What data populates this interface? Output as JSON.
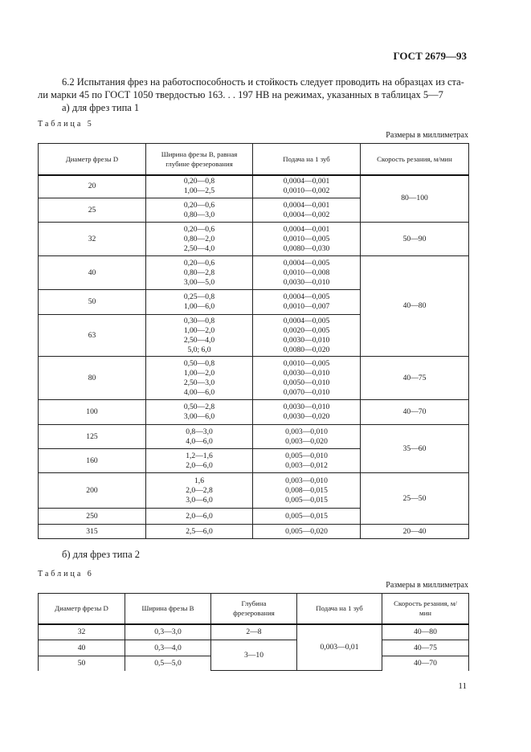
{
  "header": {
    "doc_code": "ГОСТ 2679—93"
  },
  "intro": {
    "line1": "6.2  Испытания фрез на работоспособность и стойкость следует проводить на образцах из ста-",
    "line2": "ли марки 45 по ГОСТ 1050 твердостью 163. . . 197 НВ на режимах, указанных в таблицах 5—7",
    "item_a": "а)  для фрез типа 1"
  },
  "table5": {
    "caption": "Таблица 5",
    "units": "Размеры в миллиметрах",
    "headers": [
      "Диаметр фрезы D",
      "Ширина фрезы B, равная глубине фрезерования",
      "Подача на 1 зуб",
      "Скорость резания, м/мин"
    ],
    "rows": [
      {
        "d": "20",
        "b": [
          "0,20—0,8",
          "1,00—2,5"
        ],
        "feed": [
          "0,0004—0,001",
          "0,0010—0,002"
        ],
        "speed": "80—100",
        "span": 2
      },
      {
        "d": "25",
        "b": [
          "0,20—0,6",
          "0,80—3,0"
        ],
        "feed": [
          "0,0004—0,001",
          "0,0004—0,002"
        ]
      },
      {
        "d": "32",
        "b": [
          "0,20—0,6",
          "0,80—2,0",
          "2,50—4,0"
        ],
        "feed": [
          "0,0004—0,001",
          "0,0010—0,005",
          "0,0080—0,030"
        ],
        "speed": "50—90",
        "span": 1
      },
      {
        "d": "40",
        "b": [
          "0,20—0,6",
          "0,80—2,8",
          "3,00—5,0"
        ],
        "feed": [
          "0,0004—0,005",
          "0,0010—0,008",
          "0,0030—0,010"
        ],
        "speed": "40—80",
        "span": 3
      },
      {
        "d": "50",
        "b": [
          "0,25—0,8",
          "1,00—6,0"
        ],
        "feed": [
          "0,0004—0,005",
          "0,0010—0,007"
        ]
      },
      {
        "d": "63",
        "b": [
          "0,30—0,8",
          "1,00—2,0",
          "2,50—4,0",
          "5,0; 6,0"
        ],
        "feed": [
          "0,0004—0,005",
          "0,0020—0,005",
          "0,0030—0,010",
          "0,0080—0,020"
        ]
      },
      {
        "d": "80",
        "b": [
          "0,50—0,8",
          "1,00—2,0",
          "2,50—3,0",
          "4,00—6,0"
        ],
        "feed": [
          "0,0010—0,005",
          "0,0030—0,010",
          "0,0050—0,010",
          "0,0070—0,010"
        ],
        "speed": "40—75",
        "span": 1
      },
      {
        "d": "100",
        "b": [
          "0,50—2,8",
          "3,00—6,0"
        ],
        "feed": [
          "0,0030—0,010",
          "0,0030—0,020"
        ],
        "speed": "40—70",
        "span": 1
      },
      {
        "d": "125",
        "b": [
          "0,8—3,0",
          "4,0—6,0"
        ],
        "feed": [
          "0,003—0,010",
          "0,003—0,020"
        ],
        "speed": "35—60",
        "span": 2
      },
      {
        "d": "160",
        "b": [
          "1,2—1,6",
          "2,0—6,0"
        ],
        "feed": [
          "0,005—0,010",
          "0,003—0,012"
        ]
      },
      {
        "d": "200",
        "b": [
          "1,6",
          "2,0—2,8",
          "3,0—6,0"
        ],
        "feed": [
          "0,003—0,010",
          "0,008—0,015",
          "0,005—0,015"
        ],
        "speed": "25—50",
        "span": 2
      },
      {
        "d": "250",
        "b": [
          "2,0—6,0"
        ],
        "feed": [
          "0,005—0,015"
        ]
      },
      {
        "d": "315",
        "b": [
          "2,5—6,0"
        ],
        "feed": [
          "0,005—0,020"
        ],
        "speed": "20—40",
        "span": 1
      }
    ]
  },
  "item_b": "б)  для фрез типа 2",
  "table6": {
    "caption": "Таблица 6",
    "units": "Размеры в миллиметрах",
    "headers": [
      "Диаметр фрезы D",
      "Ширина фрезы B",
      "Глубина фрезерования",
      "Подача на 1 зуб",
      "Скорость резания, м/мин"
    ],
    "rows": [
      {
        "d": "32",
        "b": "0,3—3,0",
        "depth": "2—8",
        "depth_span": 1,
        "feed": "0,003—0,01",
        "feed_span": 3,
        "speed": "40—80"
      },
      {
        "d": "40",
        "b": "0,3—4,0",
        "depth": "3—10",
        "depth_span": 2,
        "speed": "40—75"
      },
      {
        "d": "50",
        "b": "0,5—5,0",
        "speed": "40—70"
      }
    ]
  },
  "footer": {
    "page_number": "11"
  }
}
